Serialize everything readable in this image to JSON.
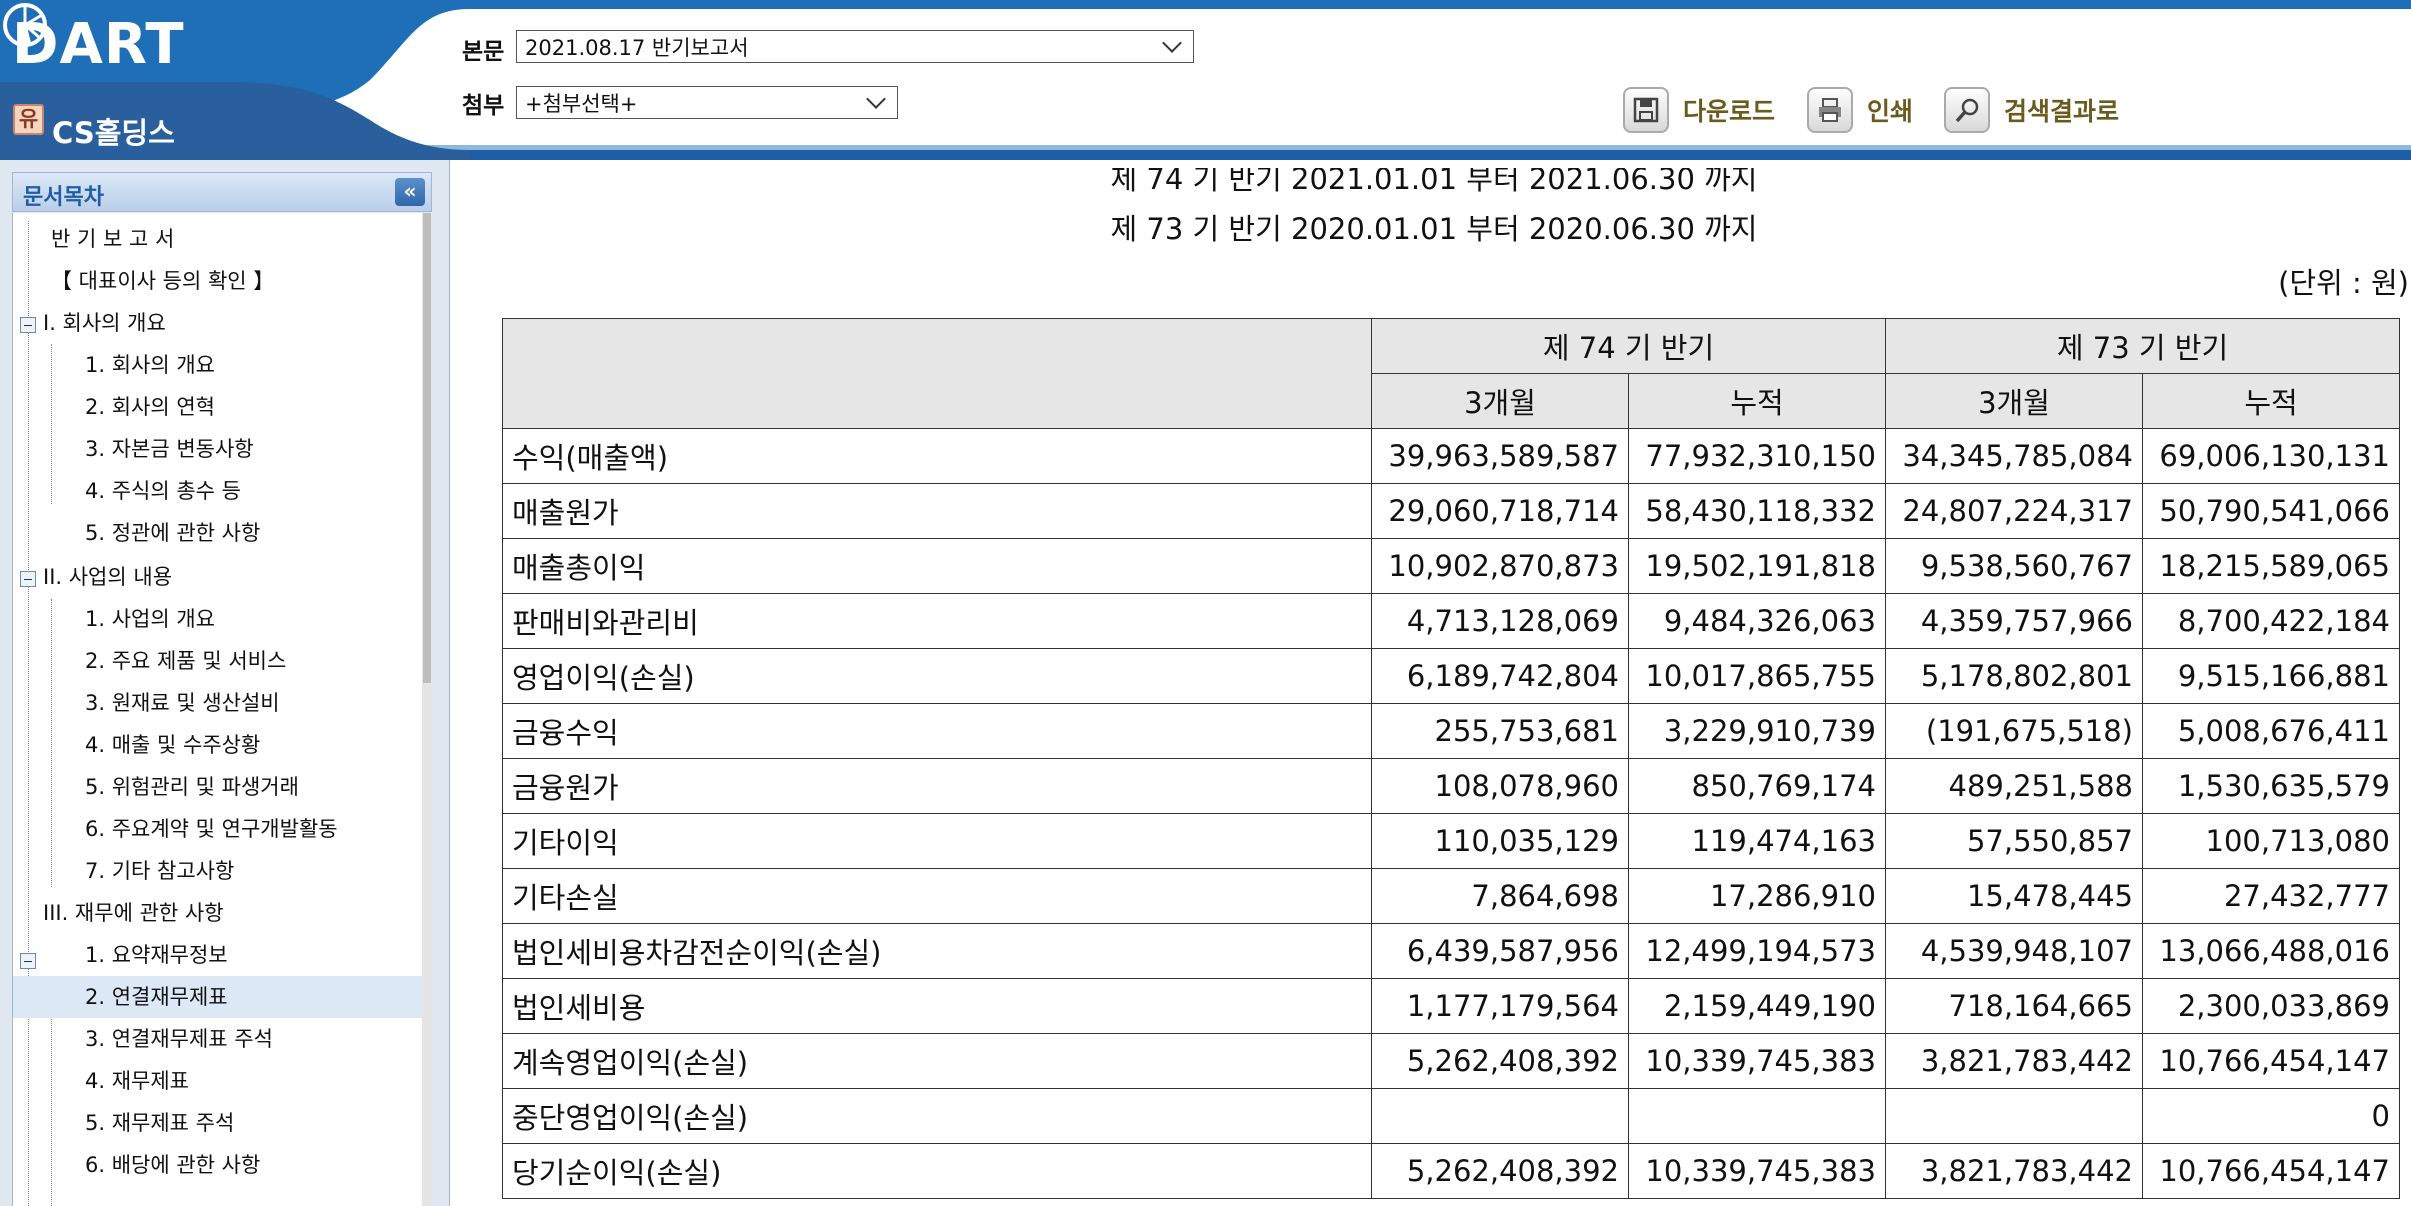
{
  "brand": {
    "logo_text": "DART",
    "company_badge": "유",
    "company_name": "CS홀딩스"
  },
  "header": {
    "main_doc_label": "본문",
    "main_doc_value": "2021.08.17  반기보고서",
    "attach_label": "첨부",
    "attach_value": "+첨부선택+",
    "download_label": "다운로드",
    "print_label": "인쇄",
    "search_results_label": "검색결과로"
  },
  "sidebar": {
    "title": "문서목차",
    "items": [
      {
        "label": "반 기 보 고 서"
      },
      {
        "label": "【 대표이사 등의 확인 】"
      },
      {
        "label": "I. 회사의 개요"
      },
      {
        "label": "1. 회사의 개요"
      },
      {
        "label": "2. 회사의 연혁"
      },
      {
        "label": "3. 자본금 변동사항"
      },
      {
        "label": "4. 주식의 총수 등"
      },
      {
        "label": "5. 정관에 관한 사항"
      },
      {
        "label": "II. 사업의 내용"
      },
      {
        "label": "1. 사업의 개요"
      },
      {
        "label": "2. 주요 제품 및 서비스"
      },
      {
        "label": "3. 원재료 및 생산설비"
      },
      {
        "label": "4. 매출 및 수주상황"
      },
      {
        "label": "5. 위험관리 및 파생거래"
      },
      {
        "label": "6. 주요계약 및 연구개발활동"
      },
      {
        "label": "7. 기타 참고사항"
      },
      {
        "label": "III. 재무에 관한 사항"
      },
      {
        "label": "1. 요약재무정보"
      },
      {
        "label": "2. 연결재무제표"
      },
      {
        "label": "3. 연결재무제표 주석"
      },
      {
        "label": "4. 재무제표"
      },
      {
        "label": "5. 재무제표 주석"
      },
      {
        "label": "6. 배당에 관한 사항"
      }
    ]
  },
  "document": {
    "period_current": "제 74 기 반기 2021.01.01 부터 2021.06.30 까지",
    "period_prior": "제 73 기 반기 2020.01.01 부터 2020.06.30 까지",
    "unit": "(단위 : 원)",
    "table": {
      "period_headers": [
        "제 74 기 반기",
        "제 73 기 반기"
      ],
      "sub_headers": [
        "3개월",
        "누적",
        "3개월",
        "누적"
      ],
      "rows": [
        {
          "label": "수익(매출액)",
          "values": [
            "39,963,589,587",
            "77,932,310,150",
            "34,345,785,084",
            "69,006,130,131"
          ]
        },
        {
          "label": "매출원가",
          "values": [
            "29,060,718,714",
            "58,430,118,332",
            "24,807,224,317",
            "50,790,541,066"
          ]
        },
        {
          "label": "매출총이익",
          "values": [
            "10,902,870,873",
            "19,502,191,818",
            "9,538,560,767",
            "18,215,589,065"
          ]
        },
        {
          "label": "판매비와관리비",
          "values": [
            "4,713,128,069",
            "9,484,326,063",
            "4,359,757,966",
            "8,700,422,184"
          ]
        },
        {
          "label": "영업이익(손실)",
          "values": [
            "6,189,742,804",
            "10,017,865,755",
            "5,178,802,801",
            "9,515,166,881"
          ]
        },
        {
          "label": "금융수익",
          "values": [
            "255,753,681",
            "3,229,910,739",
            "(191,675,518)",
            "5,008,676,411"
          ]
        },
        {
          "label": "금융원가",
          "values": [
            "108,078,960",
            "850,769,174",
            "489,251,588",
            "1,530,635,579"
          ]
        },
        {
          "label": "기타이익",
          "values": [
            "110,035,129",
            "119,474,163",
            "57,550,857",
            "100,713,080"
          ]
        },
        {
          "label": "기타손실",
          "values": [
            "7,864,698",
            "17,286,910",
            "15,478,445",
            "27,432,777"
          ]
        },
        {
          "label": "법인세비용차감전순이익(손실)",
          "values": [
            "6,439,587,956",
            "12,499,194,573",
            "4,539,948,107",
            "13,066,488,016"
          ]
        },
        {
          "label": "법인세비용",
          "values": [
            "1,177,179,564",
            "2,159,449,190",
            "718,164,665",
            "2,300,033,869"
          ]
        },
        {
          "label": "계속영업이익(손실)",
          "values": [
            "5,262,408,392",
            "10,339,745,383",
            "3,821,783,442",
            "10,766,454,147"
          ]
        },
        {
          "label": "중단영업이익(손실)",
          "values": [
            "",
            "",
            "",
            "0"
          ]
        },
        {
          "label": "당기순이익(손실)",
          "values": [
            "5,262,408,392",
            "10,339,745,383",
            "3,821,783,442",
            "10,766,454,147"
          ]
        }
      ]
    }
  }
}
